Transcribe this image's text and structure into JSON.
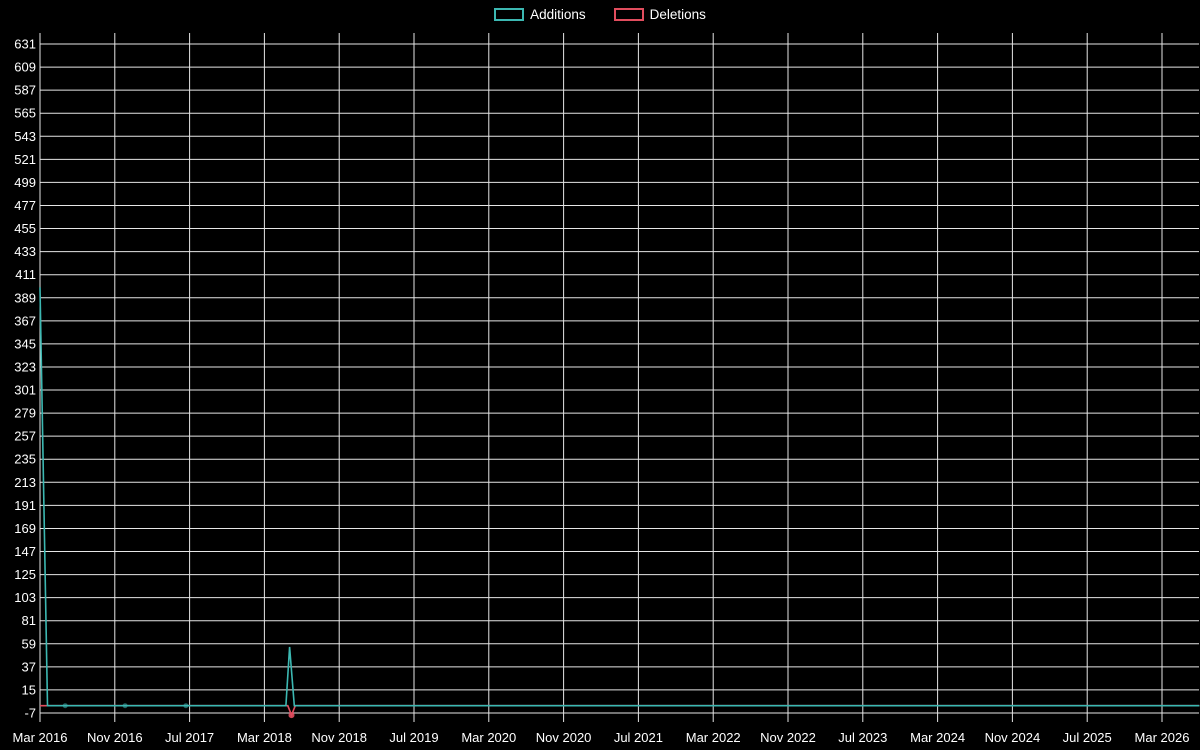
{
  "legend": {
    "items": [
      {
        "label": "Additions",
        "color": "#3cb8b2"
      },
      {
        "label": "Deletions",
        "color": "#e14d5e"
      }
    ]
  },
  "chart_data": {
    "type": "line",
    "title": "",
    "xlabel": "",
    "ylabel": "",
    "background_color": "#000000",
    "grid": true,
    "grid_color": "#e6e6e6",
    "text_color": "#ffffff",
    "legend_position": "top-center",
    "x_tick_labels": [
      "Mar 2016",
      "Nov 2016",
      "Jul 2017",
      "Mar 2018",
      "Nov 2018",
      "Jul 2019",
      "Mar 2020",
      "Nov 2020",
      "Jul 2021",
      "Mar 2022",
      "Nov 2022",
      "Jul 2023",
      "Mar 2024",
      "Nov 2024",
      "Jul 2025",
      "Mar 2026"
    ],
    "x_tick_interval_months": 8,
    "xlim_months": [
      0,
      124
    ],
    "y_ticks": [
      631,
      609,
      587,
      565,
      543,
      521,
      499,
      477,
      455,
      433,
      411,
      389,
      367,
      345,
      323,
      301,
      279,
      257,
      235,
      213,
      191,
      169,
      147,
      125,
      103,
      81,
      59,
      37,
      15,
      -7
    ],
    "ylim": [
      -7,
      631
    ],
    "series": [
      {
        "name": "Additions",
        "color": "#3cb8b2",
        "points": [
          [
            0,
            399
          ],
          [
            0.8,
            0
          ],
          [
            2.7,
            0
          ],
          [
            9.1,
            0
          ],
          [
            15.6,
            0
          ],
          [
            26.3,
            0
          ],
          [
            26.7,
            56
          ],
          [
            27.2,
            0
          ],
          [
            124,
            0
          ]
        ]
      },
      {
        "name": "Deletions",
        "color": "#e14d5e",
        "points": [
          [
            0,
            0
          ],
          [
            26.5,
            0
          ],
          [
            26.9,
            -9
          ],
          [
            27.3,
            0
          ],
          [
            124,
            0
          ]
        ]
      }
    ],
    "markers": [
      {
        "series": "Additions",
        "x": 2.7,
        "y": 0,
        "r": 2.5,
        "opacity": 0.55
      },
      {
        "series": "Additions",
        "x": 9.1,
        "y": 0,
        "r": 2.5,
        "opacity": 0.55
      },
      {
        "series": "Additions",
        "x": 15.6,
        "y": 0,
        "r": 2.5,
        "opacity": 0.55
      },
      {
        "series": "Deletions",
        "x": 26.9,
        "y": -9,
        "r": 3,
        "opacity": 0.9
      }
    ]
  }
}
